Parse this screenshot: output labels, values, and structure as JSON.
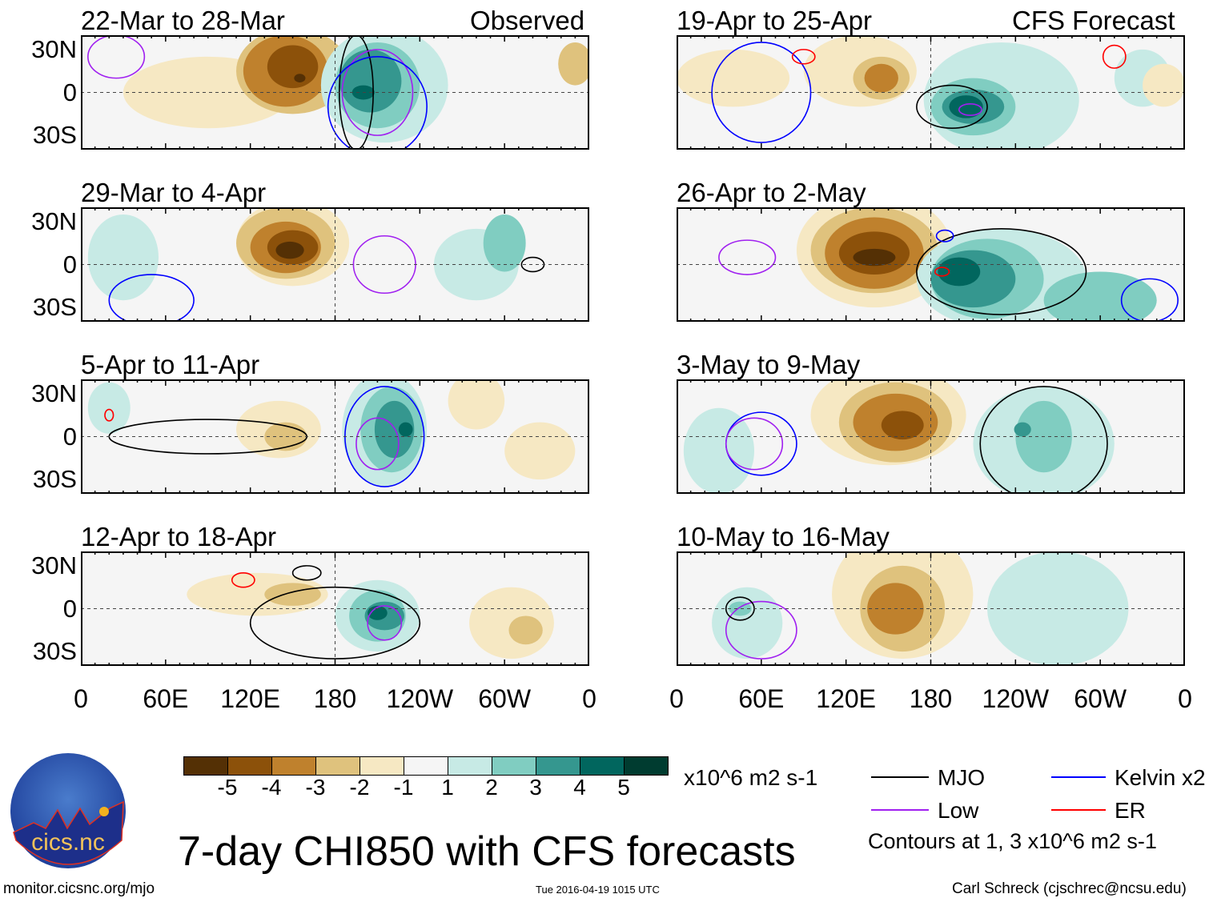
{
  "labels": {
    "observed": "Observed",
    "forecast": "CFS Forecast",
    "lat_ticks": [
      "30N",
      "0",
      "30S"
    ],
    "lon_ticks": [
      "0",
      "60E",
      "120E",
      "180",
      "120W",
      "60W",
      "0"
    ]
  },
  "panels": [
    {
      "title": "22-Mar to 28-Mar"
    },
    {
      "title": "29-Mar to 4-Apr"
    },
    {
      "title": "5-Apr to 11-Apr"
    },
    {
      "title": "12-Apr to 18-Apr"
    },
    {
      "title": "19-Apr to 25-Apr"
    },
    {
      "title": "26-Apr to 2-May"
    },
    {
      "title": "3-May to 9-May"
    },
    {
      "title": "10-May to 16-May"
    }
  ],
  "colorbar": {
    "labels": [
      "-5",
      "-4",
      "-3",
      "-2",
      "-1",
      "1",
      "2",
      "3",
      "4",
      "5"
    ],
    "colors": [
      "#543005",
      "#8c510a",
      "#bf812d",
      "#dfc27d",
      "#f6e8c3",
      "#f5f5f5",
      "#c7eae5",
      "#80cdc1",
      "#35978f",
      "#01665e",
      "#003c30"
    ],
    "units": "x10^6 m2 s-1"
  },
  "legend": {
    "items": [
      {
        "label": "MJO",
        "color": "#000000"
      },
      {
        "label": "Kelvin x2",
        "color": "#0000ff"
      },
      {
        "label": "Low",
        "color": "#a020f0"
      },
      {
        "label": "ER",
        "color": "#ff0000"
      }
    ],
    "note": "Contours at 1, 3 x10^6 m2 s-1"
  },
  "title": "7-day CHI850 with CFS forecasts",
  "logo_text": "cics.nc",
  "logo_ring_text": "Cooperative Institute for Climate and Satellites",
  "footer": {
    "url": "monitor.cicsnc.org/mjo",
    "timestamp": "Tue 2016-04-19 1015 UTC",
    "author": "Carl Schreck (cjschrec@ncsu.edu)"
  },
  "chart_data": {
    "type": "heatmap",
    "title": "7-day CHI850 with CFS forecasts",
    "variable": "850-hPa velocity potential anomaly",
    "units": "x10^6 m2 s-1",
    "levels": [
      -5,
      -4,
      -3,
      -2,
      -1,
      1,
      2,
      3,
      4,
      5
    ],
    "xaxis": {
      "ticks": [
        "0",
        "60E",
        "120E",
        "180",
        "120W",
        "60W",
        "0"
      ],
      "range": [
        0,
        360
      ]
    },
    "yaxis": {
      "ticks": [
        "30N",
        "0",
        "30S"
      ],
      "range": [
        -40,
        40
      ]
    },
    "panels_observed": [
      "22-Mar to 28-Mar",
      "29-Mar to 4-Apr",
      "5-Apr to 11-Apr",
      "12-Apr to 18-Apr"
    ],
    "panels_forecast": [
      "19-Apr to 25-Apr",
      "26-Apr to 2-May",
      "3-May to 9-May",
      "10-May to 16-May"
    ]
  }
}
